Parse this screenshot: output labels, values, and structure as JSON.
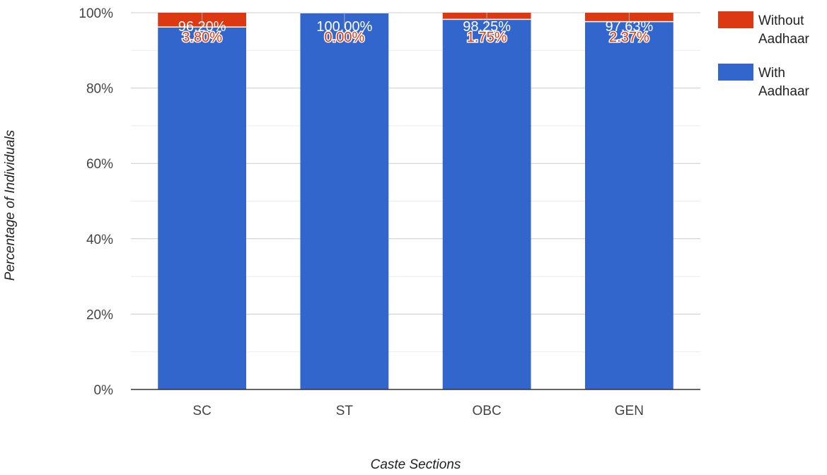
{
  "chart_data": {
    "type": "bar",
    "stacked": true,
    "categories": [
      "SC",
      "ST",
      "OBC",
      "GEN"
    ],
    "series": [
      {
        "name": "With Aadhaar",
        "color": "#3366cc",
        "values": [
          96.2,
          100.0,
          98.25,
          97.63
        ],
        "labels": [
          "96.20%",
          "100.00%",
          "98.25%",
          "97.63%"
        ]
      },
      {
        "name": "Without Aadhaar",
        "color": "#dc3912",
        "values": [
          3.8,
          0.0,
          1.75,
          2.37
        ],
        "labels": [
          "3.80%",
          "0.00%",
          "1.75%",
          "2.37%"
        ]
      }
    ],
    "ylim": [
      0,
      100
    ],
    "yticks": [
      "0%",
      "20%",
      "40%",
      "60%",
      "80%",
      "100%"
    ],
    "xlabel": "Caste Sections",
    "ylabel": "Percentage of Individuals",
    "legend": {
      "position": "right",
      "order": [
        1,
        0
      ]
    },
    "grid": true
  }
}
